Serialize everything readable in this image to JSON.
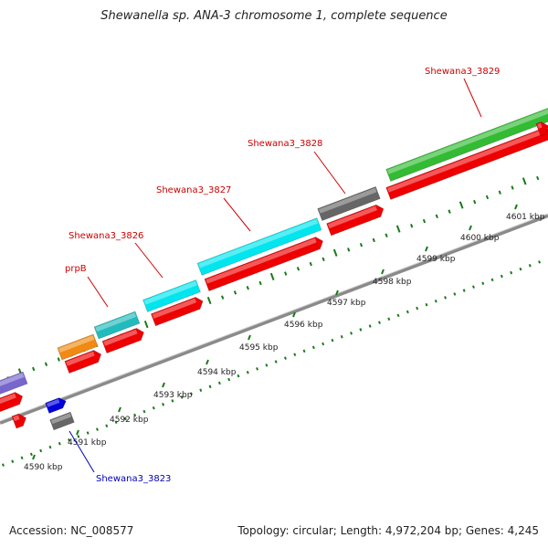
{
  "map": {
    "title": "Shewanella sp. ANA-3 chromosome 1, complete sequence",
    "accession_text": "Accession: NC_008577",
    "summary_text": "Topology: circular; Length: 4,972,204 bp; Genes: 4,245",
    "colors": {
      "backbone": "#8a8a8a",
      "tick": "#1a7a1a",
      "label_red": "#cc0000",
      "label_blue": "#0000bb",
      "kbp_text": "#222222"
    },
    "kbp_ticks": [
      {
        "label": "4590 kbp"
      },
      {
        "label": "4591 kbp"
      },
      {
        "label": "4592 kbp"
      },
      {
        "label": "4593 kbp"
      },
      {
        "label": "4594 kbp"
      },
      {
        "label": "4595 kbp"
      },
      {
        "label": "4596 kbp"
      },
      {
        "label": "4597 kbp"
      },
      {
        "label": "4598 kbp"
      },
      {
        "label": "4599 kbp"
      },
      {
        "label": "4600 kbp"
      },
      {
        "label": "4601 kbp"
      }
    ],
    "genes": [
      {
        "track": "gene",
        "color": "#7766cc"
      },
      {
        "track": "gene",
        "color": "#f08a12"
      },
      {
        "track": "gene",
        "color": "#22bbbb"
      },
      {
        "track": "gene",
        "color": "#00e5ee"
      },
      {
        "track": "gene",
        "color": "#00e5ee"
      },
      {
        "track": "gene",
        "color": "#666666"
      },
      {
        "track": "gene",
        "color": "#33bb33"
      },
      {
        "track": "cds",
        "color": "#ee0000"
      },
      {
        "track": "cds",
        "color": "#ee0000"
      },
      {
        "track": "cds",
        "color": "#ee0000"
      },
      {
        "track": "cds",
        "color": "#ee0000"
      },
      {
        "track": "cds",
        "color": "#ee0000"
      },
      {
        "track": "cds",
        "color": "#ee0000"
      },
      {
        "track": "cds",
        "color": "#ee0000"
      },
      {
        "track": "cds",
        "color": "#ee0000"
      },
      {
        "track": "cds",
        "color": "#ee0000"
      },
      {
        "track": "minus",
        "color": "#0000dd"
      },
      {
        "track": "minus",
        "color": "#666666"
      }
    ],
    "labels": [
      {
        "text": "prpB",
        "color": "#cc0000"
      },
      {
        "text": "Shewana3_3826",
        "color": "#cc0000"
      },
      {
        "text": "Shewana3_3827",
        "color": "#cc0000"
      },
      {
        "text": "Shewana3_3828",
        "color": "#cc0000"
      },
      {
        "text": "Shewana3_3829",
        "color": "#cc0000"
      },
      {
        "text": "Shewana3_3823",
        "color": "#0000bb"
      }
    ]
  }
}
